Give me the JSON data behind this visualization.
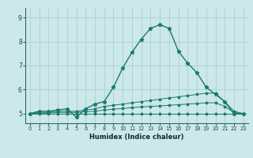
{
  "title": "",
  "xlabel": "Humidex (Indice chaleur)",
  "background_color": "#cce8e8",
  "grid_color": "#aad0d0",
  "line_color": "#1a7a6e",
  "xlim": [
    -0.5,
    23.5
  ],
  "ylim": [
    4.6,
    9.4
  ],
  "yticks": [
    5,
    6,
    7,
    8,
    9
  ],
  "xticks": [
    0,
    1,
    2,
    3,
    4,
    5,
    6,
    7,
    8,
    9,
    10,
    11,
    12,
    13,
    14,
    15,
    16,
    17,
    18,
    19,
    20,
    21,
    22,
    23
  ],
  "series": [
    [
      5.0,
      5.1,
      5.1,
      5.15,
      5.2,
      4.85,
      5.2,
      5.4,
      5.5,
      6.1,
      6.9,
      7.55,
      8.1,
      8.55,
      8.7,
      8.55,
      7.6,
      7.1,
      6.7,
      6.1,
      5.8,
      5.5,
      5.0,
      5.0
    ],
    [
      5.0,
      5.05,
      5.05,
      5.1,
      5.1,
      5.1,
      5.15,
      5.2,
      5.3,
      5.35,
      5.4,
      5.45,
      5.5,
      5.55,
      5.6,
      5.65,
      5.7,
      5.75,
      5.8,
      5.85,
      5.85,
      5.5,
      5.1,
      5.0
    ],
    [
      5.0,
      5.02,
      5.02,
      5.05,
      5.05,
      5.05,
      5.08,
      5.1,
      5.15,
      5.18,
      5.22,
      5.25,
      5.28,
      5.3,
      5.32,
      5.35,
      5.37,
      5.4,
      5.42,
      5.45,
      5.45,
      5.3,
      5.05,
      5.0
    ],
    [
      5.0,
      5.0,
      5.0,
      5.0,
      5.0,
      5.0,
      5.0,
      5.0,
      5.0,
      5.0,
      5.0,
      5.0,
      5.0,
      5.0,
      5.0,
      5.0,
      5.0,
      5.0,
      5.0,
      5.0,
      5.0,
      5.0,
      5.0,
      5.0
    ]
  ]
}
